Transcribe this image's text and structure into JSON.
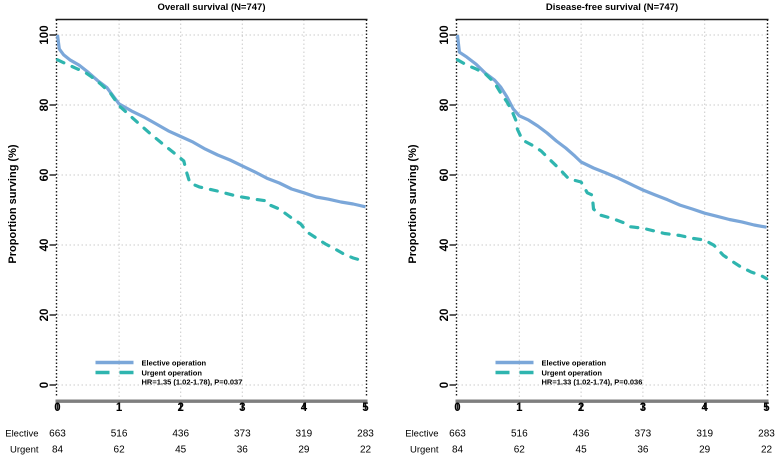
{
  "figure": {
    "ylabel": "Proportion surving (%)",
    "colors": {
      "elective": "#7ba7d9",
      "urgent": "#2fb5af",
      "grid": "#cbcbcb",
      "axis_bar": "#7f7f7f",
      "border": "#1a1a1a",
      "text": "#000000"
    },
    "risk_table": {
      "rows": [
        {
          "label": "Elective",
          "counts": [
            "663",
            "516",
            "436",
            "373",
            "319",
            "283"
          ]
        },
        {
          "label": "Urgent",
          "counts": [
            "84",
            "62",
            "45",
            "36",
            "29",
            "22"
          ]
        }
      ]
    }
  },
  "chart_data": [
    {
      "type": "line",
      "title": "Overall survival (N=747)",
      "xlabel": "",
      "ylabel": "Proportion surving (%)",
      "xlim": [
        0,
        5
      ],
      "ylim": [
        0,
        100
      ],
      "x_ticks": [
        "0",
        "1",
        "2",
        "3",
        "4",
        "5"
      ],
      "y_ticks": [
        "0",
        "20",
        "40",
        "60",
        "80",
        "100"
      ],
      "grid": true,
      "legend_position": "bottom-left-inside",
      "annotation": "HR=1.35 (1.02-1.78), P=0.037",
      "series": [
        {
          "name": "Elective operation",
          "style": "solid",
          "color": "#7ba7d9",
          "points": [
            [
              0,
              100
            ],
            [
              0.03,
              96
            ],
            [
              0.1,
              94.3
            ],
            [
              0.2,
              92.9
            ],
            [
              0.35,
              91.4
            ],
            [
              0.5,
              89.3
            ],
            [
              0.65,
              87
            ],
            [
              0.8,
              85
            ],
            [
              0.95,
              81.5
            ],
            [
              1.0,
              80.3
            ],
            [
              1.2,
              78.3
            ],
            [
              1.4,
              76.6
            ],
            [
              1.6,
              74.6
            ],
            [
              1.8,
              72.6
            ],
            [
              2.0,
              71
            ],
            [
              2.2,
              69.4
            ],
            [
              2.4,
              67.4
            ],
            [
              2.6,
              65.7
            ],
            [
              2.8,
              64.3
            ],
            [
              3.0,
              62.6
            ],
            [
              3.2,
              60.9
            ],
            [
              3.4,
              59.1
            ],
            [
              3.6,
              57.7
            ],
            [
              3.8,
              56
            ],
            [
              4.0,
              54.9
            ],
            [
              4.2,
              53.7
            ],
            [
              4.4,
              53.1
            ],
            [
              4.6,
              52.3
            ],
            [
              4.8,
              51.7
            ],
            [
              5.0,
              50.9
            ]
          ]
        },
        {
          "name": "Urgent operation",
          "style": "dashed",
          "color": "#2fb5af",
          "points": [
            [
              0,
              92.9
            ],
            [
              0.15,
              91.7
            ],
            [
              0.3,
              90.5
            ],
            [
              0.45,
              89.3
            ],
            [
              0.55,
              88.1
            ],
            [
              0.7,
              86
            ],
            [
              0.85,
              83.6
            ],
            [
              1.0,
              79.8
            ],
            [
              1.15,
              77.4
            ],
            [
              1.3,
              75
            ],
            [
              1.5,
              71.9
            ],
            [
              1.7,
              69
            ],
            [
              1.9,
              66.2
            ],
            [
              2.05,
              64
            ],
            [
              2.1,
              60.5
            ],
            [
              2.15,
              57.7
            ],
            [
              2.3,
              56.6
            ],
            [
              2.6,
              55.4
            ],
            [
              2.9,
              54
            ],
            [
              3.2,
              53.1
            ],
            [
              3.4,
              52.6
            ],
            [
              3.45,
              51.4
            ],
            [
              3.6,
              50.3
            ],
            [
              3.8,
              47.7
            ],
            [
              3.95,
              46
            ],
            [
              4.05,
              43.7
            ],
            [
              4.2,
              42
            ],
            [
              4.35,
              40.3
            ],
            [
              4.5,
              38.9
            ],
            [
              4.65,
              37.4
            ],
            [
              4.8,
              36.3
            ],
            [
              5.0,
              35.3
            ]
          ]
        }
      ],
      "at_risk": {
        "Elective": [
          663,
          516,
          436,
          373,
          319,
          283
        ],
        "Urgent": [
          84,
          62,
          45,
          36,
          29,
          22
        ]
      }
    },
    {
      "type": "line",
      "title": "Disease-free survival (N=747)",
      "xlabel": "",
      "ylabel": "Proportion surving (%)",
      "xlim": [
        0,
        5
      ],
      "ylim": [
        0,
        100
      ],
      "x_ticks": [
        "0",
        "1",
        "2",
        "3",
        "4",
        "5"
      ],
      "y_ticks": [
        "0",
        "20",
        "40",
        "60",
        "80",
        "100"
      ],
      "grid": true,
      "legend_position": "bottom-left-inside",
      "annotation": "HR=1.33 (1.02-1.74), P=0.036",
      "series": [
        {
          "name": "Elective operation",
          "style": "solid",
          "color": "#7ba7d9",
          "points": [
            [
              0,
              100
            ],
            [
              0.03,
              95.1
            ],
            [
              0.15,
              93.7
            ],
            [
              0.3,
              91.7
            ],
            [
              0.45,
              89.1
            ],
            [
              0.6,
              87.1
            ],
            [
              0.7,
              85.1
            ],
            [
              0.8,
              82.3
            ],
            [
              0.9,
              78.9
            ],
            [
              1.0,
              76.9
            ],
            [
              1.15,
              75.7
            ],
            [
              1.3,
              74
            ],
            [
              1.45,
              72
            ],
            [
              1.6,
              69.7
            ],
            [
              1.75,
              67.7
            ],
            [
              1.9,
              65.4
            ],
            [
              2.0,
              63.7
            ],
            [
              2.2,
              62
            ],
            [
              2.4,
              60.6
            ],
            [
              2.6,
              59.1
            ],
            [
              2.8,
              57.4
            ],
            [
              3.0,
              55.7
            ],
            [
              3.2,
              54.3
            ],
            [
              3.4,
              52.9
            ],
            [
              3.6,
              51.4
            ],
            [
              3.8,
              50.3
            ],
            [
              4.0,
              49.1
            ],
            [
              4.2,
              48.2
            ],
            [
              4.4,
              47.3
            ],
            [
              4.6,
              46.6
            ],
            [
              4.8,
              45.7
            ],
            [
              5.0,
              45.1
            ]
          ]
        },
        {
          "name": "Urgent operation",
          "style": "dashed",
          "color": "#2fb5af",
          "points": [
            [
              0,
              92.9
            ],
            [
              0.15,
              91.4
            ],
            [
              0.3,
              90.3
            ],
            [
              0.45,
              88.9
            ],
            [
              0.6,
              86.3
            ],
            [
              0.7,
              83.4
            ],
            [
              0.8,
              80.9
            ],
            [
              0.88,
              78.3
            ],
            [
              0.95,
              75.4
            ],
            [
              0.97,
              73.1
            ],
            [
              1.05,
              70
            ],
            [
              1.2,
              68.6
            ],
            [
              1.35,
              66.9
            ],
            [
              1.5,
              64.3
            ],
            [
              1.65,
              61.7
            ],
            [
              1.8,
              58.9
            ],
            [
              2.0,
              58
            ],
            [
              2.1,
              54.9
            ],
            [
              2.18,
              54.3
            ],
            [
              2.2,
              50.3
            ],
            [
              2.3,
              48.6
            ],
            [
              2.5,
              47.6
            ],
            [
              2.7,
              46.3
            ],
            [
              2.8,
              45.2
            ],
            [
              3.0,
              44.8
            ],
            [
              3.35,
              43.3
            ],
            [
              3.6,
              42.7
            ],
            [
              3.8,
              41.9
            ],
            [
              4.0,
              41.4
            ],
            [
              4.15,
              39.9
            ],
            [
              4.3,
              37.1
            ],
            [
              4.45,
              35.3
            ],
            [
              4.58,
              33.8
            ],
            [
              4.75,
              32.3
            ],
            [
              4.9,
              31.4
            ],
            [
              5.0,
              30.4
            ]
          ]
        }
      ],
      "at_risk": {
        "Elective": [
          663,
          516,
          436,
          373,
          319,
          283
        ],
        "Urgent": [
          84,
          62,
          45,
          36,
          29,
          22
        ]
      }
    }
  ]
}
